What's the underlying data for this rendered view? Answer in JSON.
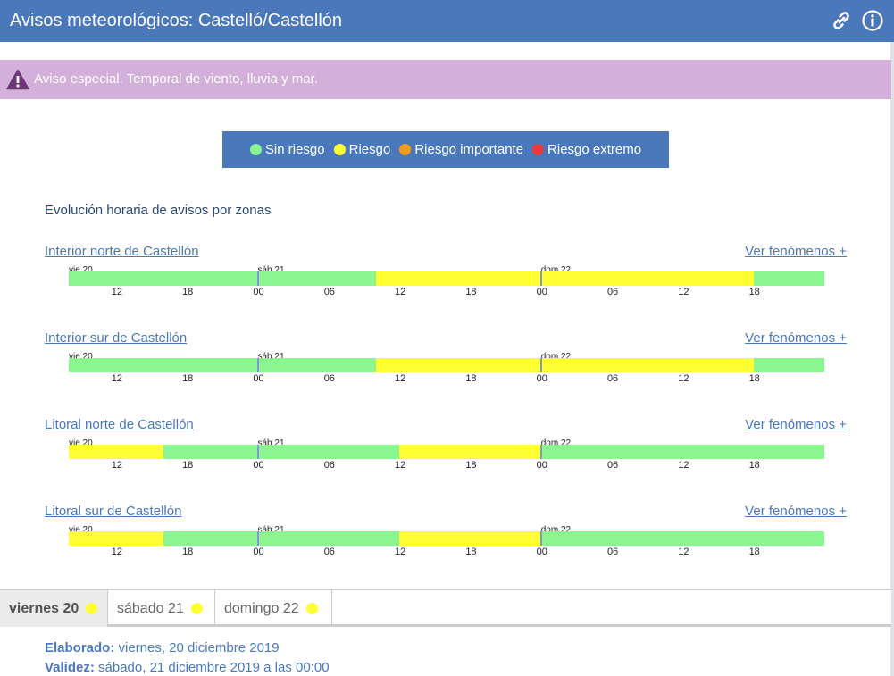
{
  "header": {
    "title": "Avisos meteorológicos: Castelló/Castellón"
  },
  "banner": {
    "text": "Aviso especial. Temporal de viento, lluvia y mar."
  },
  "legend": {
    "items": [
      {
        "label": "Sin riesgo",
        "color": "#8bf58f"
      },
      {
        "label": "Riesgo",
        "color": "#ffff33"
      },
      {
        "label": "Riesgo importante",
        "color": "#f29a1a"
      },
      {
        "label": "Riesgo extremo",
        "color": "#f0383b"
      }
    ]
  },
  "section_title": "Evolución horaria de avisos por zonas",
  "timeline": {
    "day_labels": [
      "vie 20",
      "sáb 21",
      "dom 22"
    ],
    "hour_ticks": [
      "12",
      "18",
      "00",
      "06",
      "12",
      "18",
      "00",
      "06",
      "12",
      "18"
    ]
  },
  "zones": [
    {
      "name": "Interior norte de Castellón",
      "more": "Ver fenómenos +",
      "segments": [
        {
          "level": "Sin riesgo",
          "start": "vie 20 08:00",
          "end": "sáb 21 10:00"
        },
        {
          "level": "Riesgo",
          "start": "sáb 21 10:00",
          "end": "dom 22 18:00"
        },
        {
          "level": "Sin riesgo",
          "start": "dom 22 18:00",
          "end": "dom 22 24:00"
        }
      ]
    },
    {
      "name": "Interior sur de Castellón",
      "more": "Ver fenómenos +",
      "segments": [
        {
          "level": "Sin riesgo",
          "start": "vie 20 08:00",
          "end": "sáb 21 10:00"
        },
        {
          "level": "Riesgo",
          "start": "sáb 21 10:00",
          "end": "dom 22 18:00"
        },
        {
          "level": "Sin riesgo",
          "start": "dom 22 18:00",
          "end": "dom 22 24:00"
        }
      ]
    },
    {
      "name": "Litoral norte de Castellón",
      "more": "Ver fenómenos +",
      "segments": [
        {
          "level": "Riesgo",
          "start": "vie 20 08:00",
          "end": "vie 20 16:00"
        },
        {
          "level": "Sin riesgo",
          "start": "vie 20 16:00",
          "end": "sáb 21 12:00"
        },
        {
          "level": "Riesgo",
          "start": "sáb 21 12:00",
          "end": "dom 22 00:00"
        },
        {
          "level": "Sin riesgo",
          "start": "dom 22 00:00",
          "end": "dom 22 24:00"
        }
      ]
    },
    {
      "name": "Litoral sur de Castellón",
      "more": "Ver fenómenos +",
      "segments": [
        {
          "level": "Riesgo",
          "start": "vie 20 08:00",
          "end": "vie 20 16:00"
        },
        {
          "level": "Sin riesgo",
          "start": "vie 20 16:00",
          "end": "sáb 21 12:00"
        },
        {
          "level": "Riesgo",
          "start": "sáb 21 12:00",
          "end": "dom 22 00:00"
        },
        {
          "level": "Sin riesgo",
          "start": "dom 22 00:00",
          "end": "dom 22 24:00"
        }
      ]
    }
  ],
  "tabs": [
    {
      "label": "viernes 20",
      "level": "Riesgo",
      "active": true
    },
    {
      "label": "sábado 21",
      "level": "Riesgo",
      "active": false
    },
    {
      "label": "domingo 22",
      "level": "Riesgo",
      "active": false
    }
  ],
  "info": {
    "elaborado_label": "Elaborado:",
    "elaborado_value": "viernes, 20 diciembre 2019",
    "validez_label": "Validez:",
    "validez_value": "sábado, 21 diciembre 2019 a las 00:00"
  },
  "colors": {
    "header": "#4a78bb",
    "banner": "#d3b0d9",
    "link": "#4a78bb"
  },
  "icons": {
    "link": "link-icon",
    "info": "info-icon",
    "warning": "warning-icon"
  }
}
